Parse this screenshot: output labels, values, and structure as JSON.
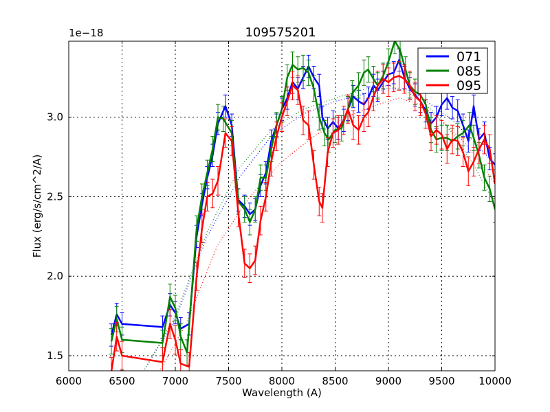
{
  "chart_data": {
    "type": "line",
    "title": "109575201",
    "xlabel": "Wavelength (A)",
    "ylabel": "Flux (erg/s/cm^2/A)",
    "y_offset_label": "1e−18",
    "xlim": [
      6000,
      10000
    ],
    "ylim": [
      1.405,
      3.478
    ],
    "xticks": [
      6000,
      6500,
      7000,
      7500,
      8000,
      8500,
      9000,
      9500,
      10000
    ],
    "xtick_labels": [
      "6000",
      "6500",
      "7000",
      "7500",
      "8000",
      "8500",
      "9000",
      "9500",
      "10000"
    ],
    "yticks": [
      1.5,
      2.0,
      2.5,
      3.0
    ],
    "ytick_labels": [
      "1.5",
      "2.0",
      "2.5",
      "3.0"
    ],
    "grid": true,
    "legend_position": "upper right",
    "series": [
      {
        "name": "071",
        "color": "#0000ff",
        "points": [
          [
            6400,
            1.63
          ],
          [
            6450,
            1.76
          ],
          [
            6500,
            1.7
          ],
          [
            6880,
            1.68
          ],
          [
            6950,
            1.82
          ],
          [
            7000,
            1.77
          ],
          [
            7050,
            1.67
          ],
          [
            7130,
            1.7
          ],
          [
            7200,
            2.25
          ],
          [
            7250,
            2.45
          ],
          [
            7300,
            2.62
          ],
          [
            7350,
            2.76
          ],
          [
            7400,
            2.96
          ],
          [
            7470,
            3.07
          ],
          [
            7530,
            2.95
          ],
          [
            7590,
            2.48
          ],
          [
            7650,
            2.44
          ],
          [
            7700,
            2.39
          ],
          [
            7750,
            2.42
          ],
          [
            7800,
            2.57
          ],
          [
            7850,
            2.65
          ],
          [
            7900,
            2.85
          ],
          [
            7950,
            2.95
          ],
          [
            8000,
            3.05
          ],
          [
            8050,
            3.12
          ],
          [
            8100,
            3.22
          ],
          [
            8150,
            3.18
          ],
          [
            8200,
            3.25
          ],
          [
            8250,
            3.32
          ],
          [
            8300,
            3.25
          ],
          [
            8350,
            3.2
          ],
          [
            8380,
            3.0
          ],
          [
            8430,
            2.93
          ],
          [
            8480,
            2.97
          ],
          [
            8530,
            2.93
          ],
          [
            8580,
            2.98
          ],
          [
            8620,
            3.05
          ],
          [
            8670,
            3.13
          ],
          [
            8720,
            3.1
          ],
          [
            8770,
            3.08
          ],
          [
            8810,
            3.12
          ],
          [
            8860,
            3.2
          ],
          [
            8900,
            3.17
          ],
          [
            8950,
            3.22
          ],
          [
            9000,
            3.27
          ],
          [
            9050,
            3.28
          ],
          [
            9100,
            3.36
          ],
          [
            9150,
            3.25
          ],
          [
            9200,
            3.18
          ],
          [
            9250,
            3.14
          ],
          [
            9300,
            3.1
          ],
          [
            9350,
            3.04
          ],
          [
            9400,
            2.96
          ],
          [
            9450,
            3.0
          ],
          [
            9500,
            3.08
          ],
          [
            9550,
            3.12
          ],
          [
            9600,
            3.06
          ],
          [
            9650,
            3.04
          ],
          [
            9700,
            2.95
          ],
          [
            9750,
            2.85
          ],
          [
            9800,
            3.07
          ],
          [
            9850,
            2.86
          ],
          [
            9900,
            2.9
          ],
          [
            9950,
            2.74
          ],
          [
            10000,
            2.7
          ]
        ],
        "err": 0.07
      },
      {
        "name": "085",
        "color": "#008000",
        "points": [
          [
            6400,
            1.59
          ],
          [
            6450,
            1.73
          ],
          [
            6500,
            1.6
          ],
          [
            6880,
            1.58
          ],
          [
            6950,
            1.87
          ],
          [
            7000,
            1.8
          ],
          [
            7050,
            1.62
          ],
          [
            7110,
            1.52
          ],
          [
            7200,
            2.3
          ],
          [
            7250,
            2.5
          ],
          [
            7300,
            2.65
          ],
          [
            7350,
            2.8
          ],
          [
            7400,
            3.0
          ],
          [
            7450,
            2.99
          ],
          [
            7530,
            2.9
          ],
          [
            7590,
            2.47
          ],
          [
            7650,
            2.42
          ],
          [
            7700,
            2.34
          ],
          [
            7750,
            2.42
          ],
          [
            7800,
            2.62
          ],
          [
            7850,
            2.62
          ],
          [
            7900,
            2.8
          ],
          [
            7950,
            2.95
          ],
          [
            8000,
            3.05
          ],
          [
            8050,
            3.25
          ],
          [
            8100,
            3.33
          ],
          [
            8150,
            3.3
          ],
          [
            8200,
            3.31
          ],
          [
            8250,
            3.28
          ],
          [
            8300,
            3.18
          ],
          [
            8350,
            3.0
          ],
          [
            8400,
            2.9
          ],
          [
            8440,
            2.86
          ],
          [
            8500,
            2.92
          ],
          [
            8560,
            2.93
          ],
          [
            8620,
            3.05
          ],
          [
            8660,
            3.15
          ],
          [
            8720,
            3.2
          ],
          [
            8770,
            3.28
          ],
          [
            8810,
            3.3
          ],
          [
            8860,
            3.24
          ],
          [
            8900,
            3.2
          ],
          [
            8950,
            3.26
          ],
          [
            9000,
            3.35
          ],
          [
            9060,
            3.48
          ],
          [
            9110,
            3.42
          ],
          [
            9160,
            3.3
          ],
          [
            9200,
            3.2
          ],
          [
            9250,
            3.16
          ],
          [
            9300,
            3.14
          ],
          [
            9350,
            3.08
          ],
          [
            9400,
            2.92
          ],
          [
            9450,
            2.86
          ],
          [
            9500,
            2.87
          ],
          [
            9550,
            2.87
          ],
          [
            9600,
            2.85
          ],
          [
            9650,
            2.88
          ],
          [
            9700,
            2.9
          ],
          [
            9760,
            2.95
          ],
          [
            9800,
            2.87
          ],
          [
            9850,
            2.76
          ],
          [
            9900,
            2.62
          ],
          [
            9950,
            2.55
          ],
          [
            10000,
            2.42
          ]
        ],
        "err": 0.08
      },
      {
        "name": "095",
        "color": "#ff0000",
        "points": [
          [
            6400,
            1.4
          ],
          [
            6450,
            1.62
          ],
          [
            6500,
            1.5
          ],
          [
            6880,
            1.46
          ],
          [
            6950,
            1.7
          ],
          [
            7000,
            1.6
          ],
          [
            7050,
            1.45
          ],
          [
            7130,
            1.43
          ],
          [
            7200,
            2.0
          ],
          [
            7250,
            2.3
          ],
          [
            7300,
            2.5
          ],
          [
            7350,
            2.52
          ],
          [
            7400,
            2.6
          ],
          [
            7470,
            2.9
          ],
          [
            7530,
            2.85
          ],
          [
            7590,
            2.4
          ],
          [
            7650,
            2.08
          ],
          [
            7700,
            2.05
          ],
          [
            7750,
            2.1
          ],
          [
            7800,
            2.35
          ],
          [
            7850,
            2.5
          ],
          [
            7900,
            2.72
          ],
          [
            7950,
            2.88
          ],
          [
            8000,
            3.0
          ],
          [
            8050,
            3.1
          ],
          [
            8100,
            3.2
          ],
          [
            8150,
            3.17
          ],
          [
            8200,
            2.98
          ],
          [
            8250,
            2.95
          ],
          [
            8300,
            2.7
          ],
          [
            8350,
            2.47
          ],
          [
            8380,
            2.43
          ],
          [
            8430,
            2.78
          ],
          [
            8480,
            2.9
          ],
          [
            8530,
            2.92
          ],
          [
            8580,
            2.98
          ],
          [
            8620,
            3.05
          ],
          [
            8670,
            2.95
          ],
          [
            8720,
            2.92
          ],
          [
            8770,
            3.0
          ],
          [
            8810,
            3.03
          ],
          [
            8860,
            3.13
          ],
          [
            8900,
            3.2
          ],
          [
            8950,
            3.24
          ],
          [
            9000,
            3.22
          ],
          [
            9050,
            3.25
          ],
          [
            9100,
            3.26
          ],
          [
            9150,
            3.24
          ],
          [
            9200,
            3.2
          ],
          [
            9250,
            3.13
          ],
          [
            9300,
            3.1
          ],
          [
            9350,
            3.02
          ],
          [
            9400,
            2.88
          ],
          [
            9450,
            2.92
          ],
          [
            9500,
            2.89
          ],
          [
            9550,
            2.8
          ],
          [
            9600,
            2.86
          ],
          [
            9650,
            2.85
          ],
          [
            9700,
            2.78
          ],
          [
            9750,
            2.66
          ],
          [
            9800,
            2.72
          ],
          [
            9850,
            2.8
          ],
          [
            9900,
            2.86
          ],
          [
            9950,
            2.8
          ],
          [
            10000,
            2.58
          ]
        ],
        "err": 0.09
      }
    ],
    "fit_curves": [
      {
        "name": "071-fit",
        "color": "#0000ff",
        "style": "dotted",
        "points": [
          [
            6700,
            1.4
          ],
          [
            7000,
            1.73
          ],
          [
            7300,
            2.25
          ],
          [
            7600,
            2.62
          ],
          [
            7900,
            2.88
          ],
          [
            8200,
            3.02
          ],
          [
            8500,
            3.1
          ],
          [
            8800,
            3.15
          ],
          [
            9000,
            3.18
          ],
          [
            9200,
            3.17
          ],
          [
            9400,
            3.08
          ],
          [
            9600,
            2.98
          ],
          [
            9800,
            2.85
          ],
          [
            10000,
            2.7
          ]
        ]
      },
      {
        "name": "085-fit",
        "color": "#008000",
        "style": "dotted",
        "points": [
          [
            6700,
            1.4
          ],
          [
            7000,
            1.75
          ],
          [
            7300,
            2.28
          ],
          [
            7600,
            2.68
          ],
          [
            7900,
            2.92
          ],
          [
            8200,
            3.05
          ],
          [
            8500,
            3.12
          ],
          [
            8800,
            3.18
          ],
          [
            9000,
            3.2
          ],
          [
            9200,
            3.15
          ],
          [
            9400,
            3.05
          ],
          [
            9600,
            2.9
          ],
          [
            9800,
            2.7
          ],
          [
            10000,
            2.45
          ]
        ]
      },
      {
        "name": "095-fit",
        "color": "#ff0000",
        "style": "dotted",
        "points": [
          [
            6850,
            1.4
          ],
          [
            7100,
            1.7
          ],
          [
            7400,
            2.2
          ],
          [
            7700,
            2.5
          ],
          [
            8000,
            2.72
          ],
          [
            8300,
            2.88
          ],
          [
            8600,
            3.0
          ],
          [
            8900,
            3.08
          ],
          [
            9100,
            3.12
          ],
          [
            9300,
            3.08
          ],
          [
            9500,
            2.98
          ],
          [
            9700,
            2.85
          ],
          [
            9900,
            2.68
          ],
          [
            10000,
            2.58
          ]
        ]
      }
    ]
  },
  "legend": {
    "items": [
      {
        "label": "071",
        "color": "#0000ff"
      },
      {
        "label": "085",
        "color": "#008000"
      },
      {
        "label": "095",
        "color": "#ff0000"
      }
    ]
  }
}
